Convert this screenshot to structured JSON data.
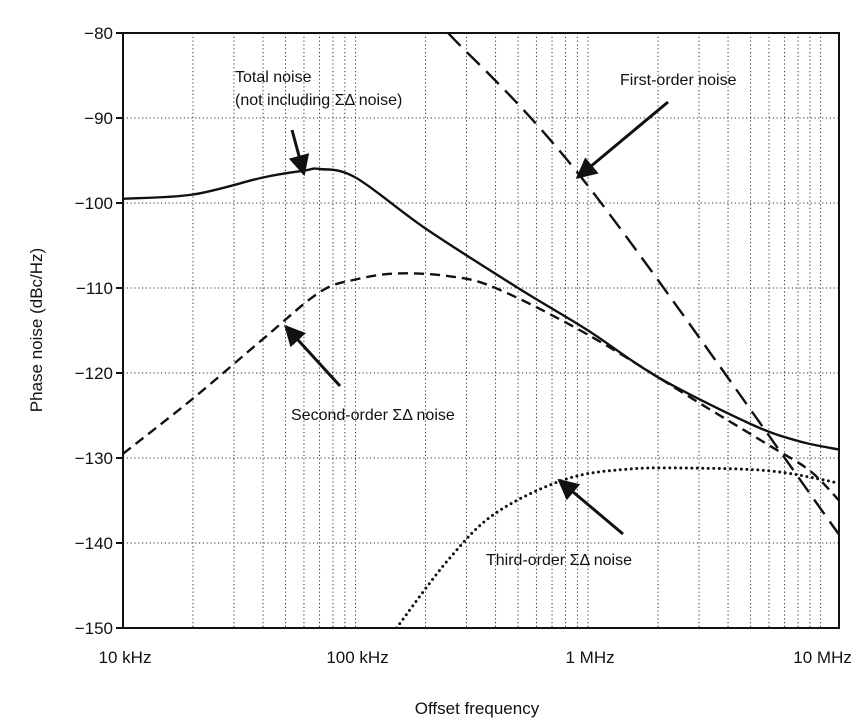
{
  "chart_data": {
    "type": "line",
    "xlabel": "Offset frequency",
    "ylabel": "Phase noise (dBc/Hz)",
    "x_scale": "log",
    "xlim": [
      10000,
      12000000
    ],
    "ylim": [
      -150,
      -80
    ],
    "grid": true,
    "x_tick_values": [
      10000,
      100000,
      1000000,
      10000000
    ],
    "x_tick_labels": [
      "10 kHz",
      "100 kHz",
      "1 MHz",
      "10 MHz"
    ],
    "y_tick_values": [
      -80,
      -90,
      -100,
      -110,
      -120,
      -130,
      -140,
      -150
    ],
    "y_tick_labels": [
      "−80",
      "−90",
      "−100",
      "−110",
      "−120",
      "−130",
      "−140",
      "−150"
    ],
    "series": [
      {
        "name": "Total noise",
        "style": "solid",
        "x": [
          10000,
          20000,
          40000,
          60000,
          70000,
          100000,
          200000,
          500000,
          1000000,
          2000000,
          5000000,
          8000000,
          12000000
        ],
        "y": [
          -99.5,
          -99,
          -97,
          -96.2,
          -96,
          -97,
          -103,
          -110,
          -115,
          -120.5,
          -126,
          -128,
          -129
        ]
      },
      {
        "name": "Second-order ΣΔ noise",
        "style": "dashed",
        "x": [
          10000,
          20000,
          40000,
          70000,
          100000,
          150000,
          250000,
          400000,
          1000000,
          3000000,
          6000000,
          9000000,
          12000000
        ],
        "y": [
          -129.5,
          -123,
          -116,
          -110.5,
          -109,
          -108.3,
          -108.6,
          -110,
          -115.5,
          -123.5,
          -128.5,
          -131.5,
          -135
        ]
      },
      {
        "name": "First-order noise",
        "style": "long-dash",
        "x": [
          250000,
          1000000,
          12000000
        ],
        "y": [
          -80,
          -98,
          -139
        ]
      },
      {
        "name": "Third-order ΣΔ noise",
        "style": "dotted",
        "x": [
          150000,
          250000,
          400000,
          800000,
          1500000,
          3000000,
          6000000,
          10000000,
          12000000
        ],
        "y": [
          -150,
          -142,
          -136.5,
          -132.5,
          -131.3,
          -131.2,
          -131.5,
          -132.5,
          -133
        ]
      }
    ],
    "annotations": [
      {
        "lines": [
          "Total noise",
          "(not including ΣΔ noise)"
        ]
      },
      {
        "lines": [
          "First-order noise"
        ]
      },
      {
        "lines": [
          "Second-order ΣΔ noise"
        ]
      },
      {
        "lines": [
          "Third-order ΣΔ noise"
        ]
      }
    ]
  }
}
